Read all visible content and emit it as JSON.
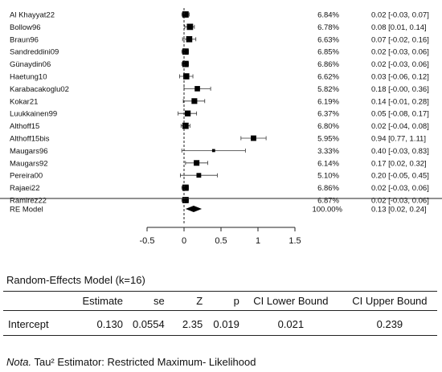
{
  "chart_data": {
    "type": "forest",
    "xlim": [
      -0.5,
      1.5
    ],
    "xticks": [
      -0.5,
      0,
      0.5,
      1,
      1.5
    ],
    "xtick_labels": [
      "-0.5",
      "0",
      "0.5",
      "1",
      "1.5"
    ],
    "reference_line": 0,
    "studies": [
      {
        "label": "Al Khayyat22",
        "estimate": 0.02,
        "ci_low": -0.03,
        "ci_high": 0.07,
        "weight": 6.84,
        "weight_label": "6.84%",
        "ci_label": "0.02 [-0.03, 0.07]"
      },
      {
        "label": "Bollow96",
        "estimate": 0.08,
        "ci_low": 0.01,
        "ci_high": 0.14,
        "weight": 6.78,
        "weight_label": "6.78%",
        "ci_label": "0.08 [0.01, 0.14]"
      },
      {
        "label": "Braun96",
        "estimate": 0.07,
        "ci_low": -0.02,
        "ci_high": 0.16,
        "weight": 6.63,
        "weight_label": "6.63%",
        "ci_label": "0.07 [-0.02, 0.16]"
      },
      {
        "label": "Sandreddini09",
        "estimate": 0.02,
        "ci_low": -0.03,
        "ci_high": 0.06,
        "weight": 6.85,
        "weight_label": "6.85%",
        "ci_label": "0.02 [-0.03, 0.06]"
      },
      {
        "label": "Günaydin06",
        "estimate": 0.02,
        "ci_low": -0.03,
        "ci_high": 0.06,
        "weight": 6.86,
        "weight_label": "6.86%",
        "ci_label": "0.02 [-0.03, 0.06]"
      },
      {
        "label": "Haetung10",
        "estimate": 0.03,
        "ci_low": -0.06,
        "ci_high": 0.12,
        "weight": 6.62,
        "weight_label": "6.62%",
        "ci_label": "0.03 [-0.06, 0.12]"
      },
      {
        "label": "Karabacakoglu02",
        "estimate": 0.18,
        "ci_low": -0.0,
        "ci_high": 0.36,
        "weight": 5.82,
        "weight_label": "5.82%",
        "ci_label": "0.18 [-0.00, 0.36]"
      },
      {
        "label": "Kokar21",
        "estimate": 0.14,
        "ci_low": -0.01,
        "ci_high": 0.28,
        "weight": 6.19,
        "weight_label": "6.19%",
        "ci_label": "0.14 [-0.01, 0.28]"
      },
      {
        "label": "Luukkainen99",
        "estimate": 0.05,
        "ci_low": -0.08,
        "ci_high": 0.17,
        "weight": 6.37,
        "weight_label": "6.37%",
        "ci_label": "0.05 [-0.08, 0.17]"
      },
      {
        "label": "Althoff15",
        "estimate": 0.02,
        "ci_low": -0.04,
        "ci_high": 0.08,
        "weight": 6.8,
        "weight_label": "6.80%",
        "ci_label": "0.02 [-0.04, 0.08]"
      },
      {
        "label": "Althoff15bis",
        "estimate": 0.94,
        "ci_low": 0.77,
        "ci_high": 1.11,
        "weight": 5.95,
        "weight_label": "5.95%",
        "ci_label": "0.94 [0.77, 1.11]"
      },
      {
        "label": "Maugars96",
        "estimate": 0.4,
        "ci_low": -0.03,
        "ci_high": 0.83,
        "weight": 3.33,
        "weight_label": "3.33%",
        "ci_label": "0.40 [-0.03, 0.83]"
      },
      {
        "label": "Maugars92",
        "estimate": 0.17,
        "ci_low": 0.02,
        "ci_high": 0.32,
        "weight": 6.14,
        "weight_label": "6.14%",
        "ci_label": "0.17 [0.02, 0.32]"
      },
      {
        "label": "Pereira00",
        "estimate": 0.2,
        "ci_low": -0.05,
        "ci_high": 0.45,
        "weight": 5.1,
        "weight_label": "5.10%",
        "ci_label": "0.20 [-0.05, 0.45]"
      },
      {
        "label": "Rajaei22",
        "estimate": 0.02,
        "ci_low": -0.03,
        "ci_high": 0.06,
        "weight": 6.86,
        "weight_label": "6.86%",
        "ci_label": "0.02 [-0.03, 0.06]"
      },
      {
        "label": "Ramirez22",
        "estimate": 0.02,
        "ci_low": -0.03,
        "ci_high": 0.06,
        "weight": 6.87,
        "weight_label": "6.87%",
        "ci_label": "0.02 [-0.03, 0.06]"
      }
    ],
    "summary": {
      "label": "RE Model",
      "estimate": 0.13,
      "ci_low": 0.02,
      "ci_high": 0.24,
      "weight_label": "100.00%",
      "ci_label": "0.13 [0.02, 0.24]"
    }
  },
  "table": {
    "title": "Random-Effects Model (k=16)",
    "headers": [
      "",
      "Estimate",
      "se",
      "Z",
      "p",
      "CI Lower Bound",
      "CI Upper Bound"
    ],
    "rows": [
      {
        "term": "Intercept",
        "estimate": "0.130",
        "se": "0.0554",
        "z": "2.35",
        "p": "0.019",
        "ci_lower": "0.021",
        "ci_upper": "0.239"
      }
    ]
  },
  "note": {
    "prefix": "Nota.",
    "text": "Tau² Estimator: Restricted Maximum- Likelihood"
  }
}
